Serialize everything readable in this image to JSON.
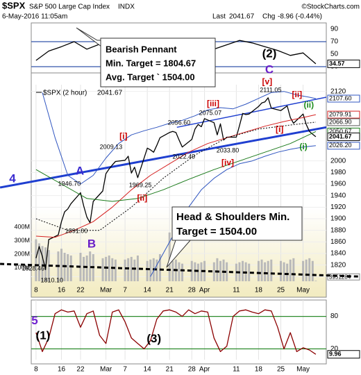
{
  "header": {
    "symbol": "$SPX",
    "name": "S&P 500 Large Cap Index",
    "exchange": "INDX",
    "credit": "©StockCharts.com",
    "date": "6-May-2016 11:05am",
    "last_label": "Last",
    "last": 2041.67,
    "chg_label": "Chg",
    "chg": "-8.96 (-0.44%)"
  },
  "callouts": [
    {
      "lines": [
        "Bearish Pennant",
        "Min. Target = 1804.67",
        "Avg. Target ` 1504.00"
      ]
    },
    {
      "lines": [
        "Head & Shoulders Min.",
        "Target = 1504.00"
      ]
    }
  ],
  "chart_data": [
    {
      "type": "line",
      "x": [
        0,
        4,
        8,
        12,
        16,
        20,
        24,
        28,
        32,
        36,
        40,
        44,
        48,
        52,
        56,
        60,
        64,
        68,
        72,
        76,
        80,
        84,
        88
      ],
      "series": [
        {
          "color": "#000000",
          "values": [
            40,
            55,
            62,
            70,
            58,
            66,
            61,
            64,
            55,
            65,
            60,
            57,
            52,
            62,
            58,
            65,
            72,
            68,
            62,
            56,
            48,
            52,
            34.57
          ]
        }
      ],
      "ylim": [
        20,
        100
      ],
      "yticks": [
        30,
        50,
        70,
        90
      ],
      "guides": [
        30,
        70
      ],
      "guide_color": "#3355aa",
      "annotations": [
        {
          "text": "(2)",
          "x": 73.4,
          "y": 50,
          "color": "#000000",
          "kind": "big"
        },
        {
          "text": "C",
          "x": 73.4,
          "y": 24.4,
          "color": "#6a1fc8",
          "kind": "big"
        }
      ]
    },
    {
      "type": "line",
      "legend_text": "$SPX (2 hour)",
      "legend_value": 2041.67,
      "x": [
        0,
        1,
        2,
        3,
        4,
        7,
        8,
        9,
        10,
        11,
        14,
        15,
        16,
        17,
        18,
        21,
        22,
        23,
        24,
        25,
        28,
        29,
        30,
        31,
        32,
        35,
        36,
        37,
        38,
        39,
        42,
        43,
        44,
        45,
        46,
        49,
        50,
        51,
        52,
        53,
        56,
        57,
        58,
        59,
        60,
        63,
        64,
        65,
        66,
        67,
        70,
        71,
        72,
        73,
        74,
        77,
        78,
        79,
        80,
        81,
        84,
        85,
        86,
        87,
        88
      ],
      "series": [
        {
          "color": "#000000",
          "values": [
            1832,
            1852,
            1835,
            1812,
            1864,
            1872,
            1895,
            1912,
            1917,
            1926,
            1945,
            1922,
            1903,
            1893,
            1930,
            1948,
            1978,
            1986,
            1993,
            1999,
            2001,
            2008,
            1979,
            1989,
            1971,
            2022,
            2019,
            2015,
            2027,
            2040,
            2049,
            2051,
            2049,
            2036,
            2024,
            2037,
            2055,
            2063,
            2059,
            2073,
            2066,
            2045,
            2064,
            2036,
            2041,
            2041,
            2061,
            2082,
            2080,
            2081,
            2094,
            2100,
            2102,
            2109,
            2091,
            2087,
            2091,
            2095,
            2075,
            2065,
            2081,
            2063,
            2051,
            2046,
            2041.67
          ]
        },
        {
          "color": "#2f55c0",
          "x": [
            2,
            6,
            10,
            14,
            18,
            22,
            26,
            30,
            34,
            38,
            42,
            46,
            50,
            54,
            58,
            62,
            66,
            70,
            74,
            78,
            82,
            86,
            88
          ],
          "values": [
            2118,
            2040,
            1975,
            1960,
            1975,
            2005,
            2030,
            2045,
            2052,
            2058,
            2065,
            2070,
            2078,
            2088,
            2092,
            2090,
            2098,
            2108,
            2118,
            2120,
            2114,
            2110,
            2107.6
          ]
        },
        {
          "color": "#2f55c0",
          "x": [
            36,
            40,
            44,
            48,
            52,
            56,
            60,
            64,
            68,
            72,
            76,
            80,
            84,
            88
          ],
          "values": [
            1800,
            1840,
            1880,
            1920,
            1950,
            1970,
            1985,
            1995,
            2000,
            2008,
            2015,
            2020,
            2024,
            2026.2
          ]
        },
        {
          "color": "#d62020",
          "x": [
            0,
            6,
            12,
            18,
            24,
            30,
            36,
            42,
            48,
            54,
            60,
            66,
            72,
            78,
            84,
            88
          ],
          "values": [
            1870,
            1868,
            1880,
            1895,
            1920,
            1950,
            1975,
            1995,
            2015,
            2030,
            2040,
            2050,
            2060,
            2068,
            2075,
            2079.91
          ]
        },
        {
          "color": "#1a7a1a",
          "x": [
            0,
            8,
            16,
            24,
            32,
            40,
            48,
            56,
            64,
            72,
            80,
            88
          ],
          "values": [
            1985,
            1960,
            1935,
            1930,
            1935,
            1950,
            1968,
            1985,
            2000,
            2015,
            2030,
            2050.67
          ]
        },
        {
          "color": "#000000",
          "dotted": true,
          "x": [
            0,
            10,
            20,
            30,
            40,
            50,
            60,
            70,
            80,
            88
          ],
          "values": [
            1900,
            1880,
            1880,
            1920,
            1970,
            2010,
            2040,
            2055,
            2062,
            2066.9
          ]
        }
      ],
      "trendlines": [
        {
          "color": "#1f3fd0",
          "heavy": true,
          "x": [
            -11.3,
            91.3
          ],
          "values": [
            1954,
            2058
          ]
        },
        {
          "color": "#1f3fd0",
          "x": [
            44.3,
            91.3
          ],
          "values": [
            2058,
            2110
          ]
        },
        {
          "color": "#000000",
          "dashed": true,
          "heavy": true,
          "x": [
            -11.3,
            102
          ],
          "values": [
            1822,
            1800
          ]
        }
      ],
      "last_labels": [
        {
          "value": 2107.6,
          "label": "2107.60",
          "color": "#2f55c0"
        },
        {
          "value": 2079.91,
          "label": "2079.91",
          "color": "#d62020"
        },
        {
          "value": 2066.9,
          "label": "2066.90",
          "color": "#555555"
        },
        {
          "value": 2050.67,
          "label": "2050.67",
          "color": "#1a7a1a"
        },
        {
          "value": 2026.2,
          "label": "2026.20",
          "color": "#2f55c0"
        }
      ],
      "xlim": [
        -1.5,
        91.3
      ],
      "xticks": [
        {
          "value": 0,
          "label": "8"
        },
        {
          "value": 8,
          "label": "16"
        },
        {
          "value": 14,
          "label": "22"
        },
        {
          "value": 22,
          "label": "Mar"
        },
        {
          "value": 28,
          "label": "7"
        },
        {
          "value": 35,
          "label": "14"
        },
        {
          "value": 42,
          "label": "21"
        },
        {
          "value": 49,
          "label": "28"
        },
        {
          "value": 53,
          "label": "Apr"
        },
        {
          "value": 63,
          "label": "11"
        },
        {
          "value": 70,
          "label": "18"
        },
        {
          "value": 77,
          "label": "25"
        },
        {
          "value": 84,
          "label": "May"
        }
      ],
      "ylim": [
        1792,
        2122
      ],
      "yticks": [
        1800,
        1820,
        1840,
        1860,
        1880,
        1900,
        1920,
        1940,
        1960,
        1980,
        2000,
        2120
      ],
      "grid": true,
      "volume": {
        "color": "#b9b9b9",
        "ylim": [
          0,
          1410000000
        ],
        "yticks": [
          {
            "value": 100000000,
            "label": "100M"
          },
          {
            "value": 200000000,
            "label": "200M"
          },
          {
            "value": 300000000,
            "label": "300M"
          },
          {
            "value": 400000000,
            "label": "400M"
          }
        ],
        "values": [
          310000000,
          280000000,
          260000000,
          250000000,
          230000000,
          220000000,
          240000000,
          210000000,
          200000000,
          190000000,
          210000000,
          180000000,
          190000000,
          220000000,
          200000000,
          170000000,
          180000000,
          190000000,
          170000000,
          160000000,
          160000000,
          170000000,
          180000000,
          160000000,
          190000000,
          150000000,
          160000000,
          170000000,
          160000000,
          200000000,
          360000000,
          150000000,
          160000000,
          140000000,
          130000000,
          150000000,
          140000000,
          130000000,
          140000000,
          150000000,
          140000000,
          170000000,
          150000000,
          160000000,
          140000000,
          130000000,
          140000000,
          150000000,
          140000000,
          130000000,
          150000000,
          160000000,
          140000000,
          150000000,
          160000000,
          150000000,
          140000000,
          130000000,
          160000000,
          170000000,
          150000000,
          160000000,
          170000000,
          150000000,
          3951284
        ]
      },
      "annotations": [
        {
          "text": "A",
          "x": 13.8,
          "y": 1981.6,
          "color": "#3a2bd0",
          "kind": "big"
        },
        {
          "text": "B",
          "x": 17.5,
          "y": 1855.6,
          "color": "#6a1fc8",
          "kind": "big"
        },
        {
          "text": "4",
          "x": -7.4,
          "y": 1968.4,
          "color": "#3a2bd0",
          "kind": "big"
        },
        {
          "text": "1946.70",
          "x": 10.5,
          "y": 1960,
          "color": "#000000",
          "kind": "price"
        },
        {
          "text": "1891.00",
          "x": 12.7,
          "y": 1878.4,
          "color": "#000000",
          "kind": "price"
        },
        {
          "text": "1828.46",
          "x": -0.9,
          "y": 1813.6,
          "color": "#000000",
          "kind": "price"
        },
        {
          "text": "1810.10",
          "x": 5,
          "y": 1793.2,
          "color": "#000000",
          "kind": "price"
        },
        {
          "text": "2009.13",
          "x": 23.6,
          "y": 2023.6,
          "color": "#000000",
          "kind": "price"
        },
        {
          "text": "[i]",
          "x": 27.5,
          "y": 2041.6,
          "color": "#cc0000",
          "kind": "wave"
        },
        {
          "text": "1969.25",
          "x": 32.8,
          "y": 1957.6,
          "color": "#000000",
          "kind": "price"
        },
        {
          "text": "[ii]",
          "x": 33.4,
          "y": 1934.8,
          "color": "#cc0000",
          "kind": "wave"
        },
        {
          "text": "2056.60",
          "x": 45,
          "y": 2065.6,
          "color": "#000000",
          "kind": "price"
        },
        {
          "text": "2022.49",
          "x": 46.5,
          "y": 2006.8,
          "color": "#000000",
          "kind": "price"
        },
        {
          "text": "[iii]",
          "x": 55.7,
          "y": 2098,
          "color": "#cc0000",
          "kind": "wave"
        },
        {
          "text": "2075.07",
          "x": 54.8,
          "y": 2082.4,
          "color": "#000000",
          "kind": "price"
        },
        {
          "text": "2033.80",
          "x": 60.3,
          "y": 2017.6,
          "color": "#000000",
          "kind": "price"
        },
        {
          "text": "[iv]",
          "x": 60.3,
          "y": 1996,
          "color": "#cc0000",
          "kind": "wave"
        },
        {
          "text": "[v]",
          "x": 72.7,
          "y": 2136,
          "color": "#cc0000",
          "kind": "wave"
        },
        {
          "text": "2111.05",
          "x": 73.8,
          "y": 2122,
          "color": "#000000",
          "kind": "price"
        },
        {
          "text": "[ii]",
          "x": 82.1,
          "y": 2113.6,
          "color": "#cc0000",
          "kind": "wave"
        },
        {
          "text": "[i]",
          "x": 76.6,
          "y": 2053.6,
          "color": "#cc0000",
          "kind": "wave"
        },
        {
          "text": "(ii)",
          "x": 85.8,
          "y": 2095.6,
          "color": "#1a8a1a",
          "kind": "wave"
        },
        {
          "text": "(i)",
          "x": 84.1,
          "y": 2023.6,
          "color": "#1a8a1a",
          "kind": "wave"
        }
      ]
    },
    {
      "type": "line",
      "x": [
        0,
        2,
        4,
        6,
        8,
        10,
        12,
        14,
        16,
        18,
        20,
        22,
        24,
        26,
        28,
        30,
        32,
        34,
        36,
        38,
        40,
        42,
        44,
        46,
        48,
        50,
        52,
        54,
        56,
        58,
        60,
        62,
        64,
        66,
        68,
        70,
        72,
        74,
        76,
        78,
        80,
        82,
        84,
        86,
        88
      ],
      "series": [
        {
          "color": "#8b0000",
          "values": [
            50,
            15,
            40,
            85,
            92,
            88,
            90,
            60,
            85,
            90,
            45,
            30,
            88,
            92,
            70,
            40,
            30,
            20,
            35,
            75,
            90,
            92,
            88,
            80,
            92,
            85,
            90,
            88,
            40,
            15,
            25,
            80,
            90,
            92,
            88,
            85,
            92,
            90,
            60,
            20,
            50,
            15,
            22,
            18,
            9.96
          ]
        }
      ],
      "ylim": [
        0,
        100
      ],
      "yticks": [
        20,
        80
      ],
      "guides": [
        20,
        80
      ],
      "guide_color": "#2a8a2a",
      "xlim": [
        -1.5,
        91.3
      ],
      "xticks": [
        {
          "value": 0,
          "label": "8"
        },
        {
          "value": 8,
          "label": "16"
        },
        {
          "value": 14,
          "label": "22"
        },
        {
          "value": 22,
          "label": "Mar"
        },
        {
          "value": 28,
          "label": "7"
        },
        {
          "value": 35,
          "label": "14"
        },
        {
          "value": 42,
          "label": "21"
        },
        {
          "value": 49,
          "label": "28"
        },
        {
          "value": 53,
          "label": "Apr"
        },
        {
          "value": 63,
          "label": "11"
        },
        {
          "value": 70,
          "label": "18"
        },
        {
          "value": 77,
          "label": "25"
        },
        {
          "value": 84,
          "label": "May"
        }
      ],
      "annotations": [
        {
          "text": "5",
          "x": -0.4,
          "y": 71,
          "color": "#7020d0",
          "kind": "big"
        },
        {
          "text": "(1)",
          "x": 2.2,
          "y": 43.75,
          "color": "#000000",
          "kind": "big"
        },
        {
          "text": "(3)",
          "x": 37.1,
          "y": 37.5,
          "color": "#000000",
          "kind": "big"
        }
      ]
    }
  ]
}
